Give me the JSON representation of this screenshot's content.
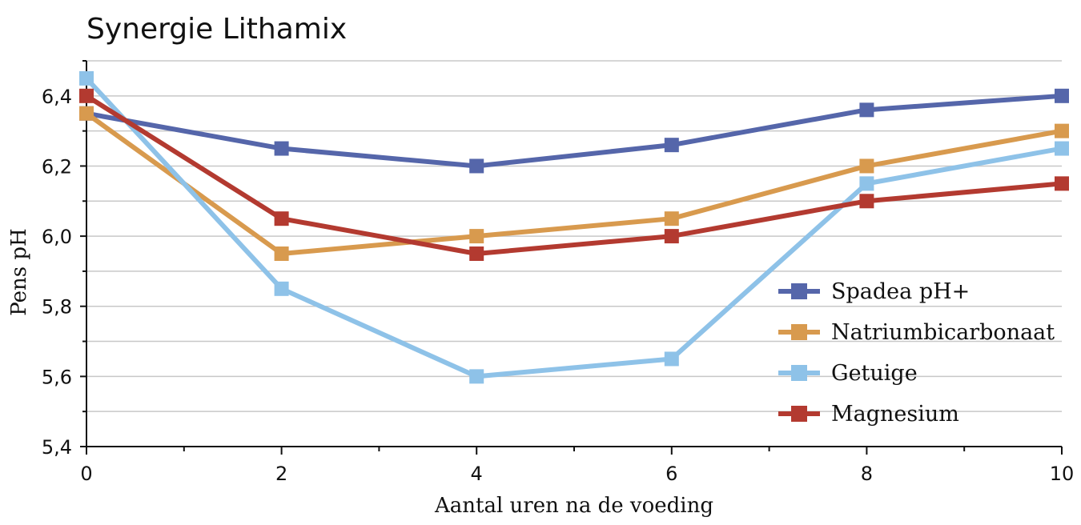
{
  "chart_data": {
    "type": "line",
    "title": "Synergie Lithamix",
    "xlabel": "Aantal uren na de voeding",
    "ylabel": "Pens pH",
    "x": [
      0,
      2,
      4,
      6,
      8,
      10
    ],
    "x_ticks": [
      "0",
      "2",
      "4",
      "6",
      "8",
      "10"
    ],
    "xlim": [
      0,
      10
    ],
    "ylim": [
      5.4,
      6.5
    ],
    "y_ticks": [
      "5,4",
      "5,6",
      "5,8",
      "6,0",
      "6,2",
      "6,4"
    ],
    "grid": true,
    "legend_position": "bottom-right",
    "series": [
      {
        "name": "Spadea pH+",
        "color": "#5566aa",
        "values": [
          6.35,
          6.25,
          6.2,
          6.26,
          6.36,
          6.4
        ]
      },
      {
        "name": "Natriumbicarbonaat",
        "color": "#d89a4e",
        "values": [
          6.35,
          5.95,
          6.0,
          6.05,
          6.2,
          6.3
        ]
      },
      {
        "name": "Getuige",
        "color": "#8ec2e8",
        "values": [
          6.45,
          5.85,
          5.6,
          5.65,
          6.15,
          6.25
        ]
      },
      {
        "name": "Magnesium",
        "color": "#b33a30",
        "values": [
          6.4,
          6.05,
          5.95,
          6.0,
          6.1,
          6.15
        ]
      }
    ]
  }
}
